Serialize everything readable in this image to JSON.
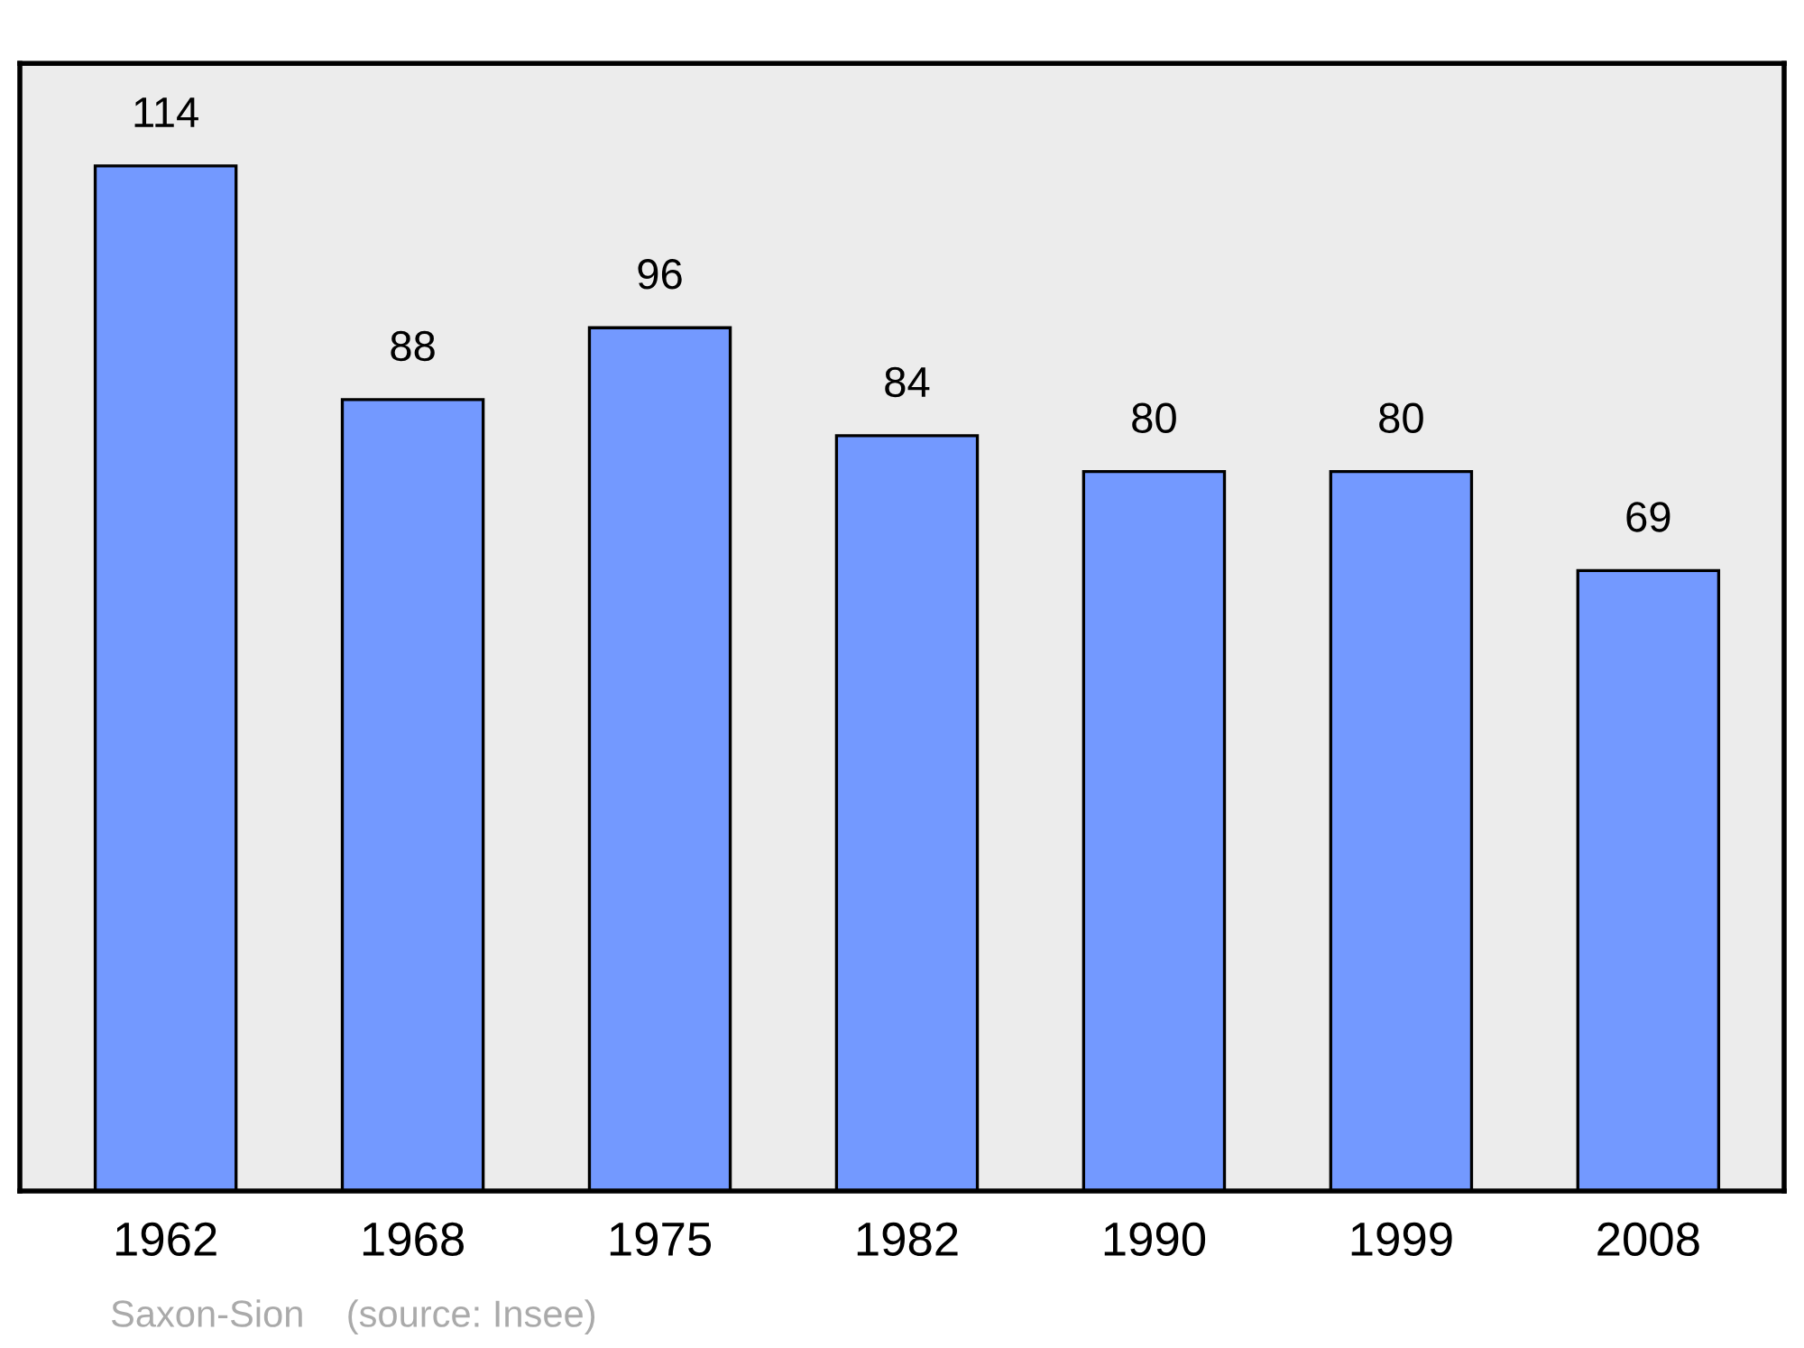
{
  "chart_data": {
    "type": "bar",
    "categories": [
      "1962",
      "1968",
      "1975",
      "1982",
      "1990",
      "1999",
      "2008"
    ],
    "values": [
      114,
      88,
      96,
      84,
      80,
      80,
      69
    ],
    "color": "#7399ff",
    "data_labels": true,
    "grid": false,
    "legend": false,
    "tick_labels": "x",
    "annotations": [
      "Saxon-Sion    (source: Insee)"
    ]
  }
}
